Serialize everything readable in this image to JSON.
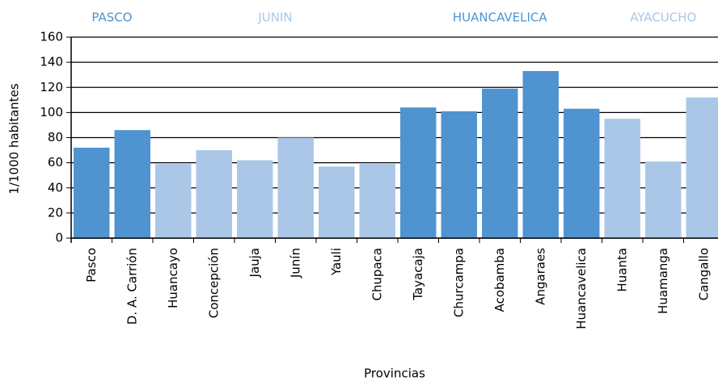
{
  "chart_data": {
    "type": "bar",
    "groups": [
      {
        "name": "PASCO",
        "color": "#4f93d1",
        "categories": [
          "Pasco",
          "D. A. Carrión"
        ],
        "values": [
          72,
          86
        ]
      },
      {
        "name": "JUNIN",
        "color": "#aac7e7",
        "categories": [
          "Huancayo",
          "Concepción",
          "Jauja",
          "Junín",
          "Yauli",
          "Chupaca"
        ],
        "values": [
          59,
          70,
          62,
          80,
          57,
          59
        ]
      },
      {
        "name": "HUANCAVELICA",
        "color": "#4f93d1",
        "categories": [
          "Tayacaja",
          "Churcampa",
          "Acobamba",
          "Angaraes",
          "Huancavelica"
        ],
        "values": [
          104,
          101,
          119,
          133,
          103
        ]
      },
      {
        "name": "AYACUCHO",
        "color": "#aac7e7",
        "categories": [
          "Huanta",
          "Huamanga",
          "Cangallo"
        ],
        "values": [
          95,
          61,
          112
        ]
      }
    ],
    "ylabel": "1/1000 habitantes",
    "xlabel": "Provincias",
    "ylim": [
      0,
      160
    ],
    "yticks": [
      0,
      20,
      40,
      60,
      80,
      100,
      120,
      140,
      160
    ],
    "grid": true
  }
}
